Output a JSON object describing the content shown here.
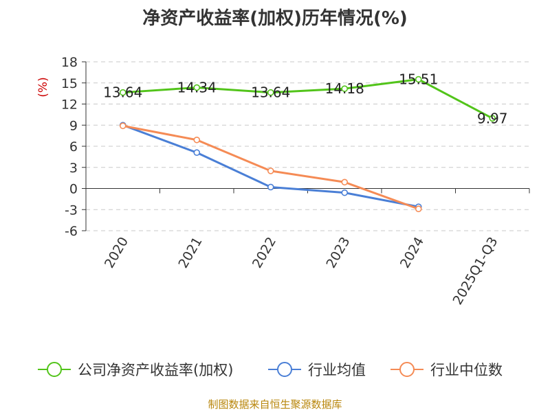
{
  "chart_data": {
    "type": "line",
    "title": "净资产收益率(加权)历年情况(%)",
    "ylabel": "(%)",
    "xlabel": "",
    "categories": [
      "2020",
      "2021",
      "2022",
      "2023",
      "2024",
      "2025Q1-Q3"
    ],
    "ylim": [
      -6,
      18
    ],
    "yticks": [
      18,
      15,
      12,
      9,
      6,
      3,
      0,
      -3,
      -6
    ],
    "grid": true,
    "legend": "bottom",
    "series": [
      {
        "name": "公司净资产收益率(加权)",
        "color": "#52c41a",
        "values": [
          13.64,
          14.34,
          13.64,
          14.18,
          15.51,
          9.97
        ],
        "labels": [
          "13.64",
          "14.34",
          "13.64",
          "14.18",
          "15.51",
          "9.97"
        ]
      },
      {
        "name": "行业均值",
        "color": "#4a7fd6",
        "values": [
          9.0,
          5.1,
          0.2,
          -0.6,
          -2.6,
          null
        ]
      },
      {
        "name": "行业中位数",
        "color": "#f58b55",
        "values": [
          8.9,
          6.9,
          2.5,
          0.9,
          -2.9,
          null
        ]
      }
    ]
  },
  "source": "制图数据来自恒生聚源数据库"
}
